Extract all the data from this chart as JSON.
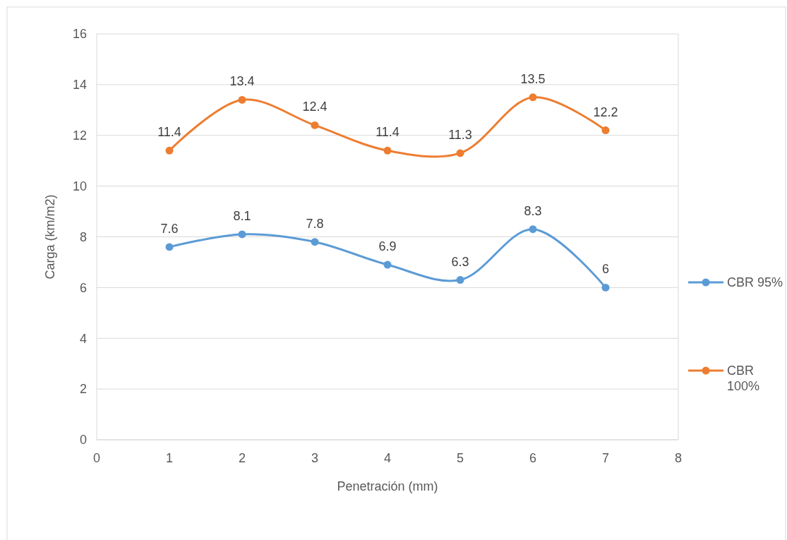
{
  "chart_data": {
    "type": "line",
    "xlabel": "Penetración (mm)",
    "ylabel": "Carga (km/m2)",
    "x": [
      1,
      2,
      3,
      4,
      5,
      6,
      7
    ],
    "series": [
      {
        "name": "CBR 95%",
        "color": "#5b9bd5",
        "values": [
          7.6,
          8.1,
          7.8,
          6.9,
          6.3,
          8.3,
          6
        ]
      },
      {
        "name": "CBR 100%",
        "color": "#ed7d31",
        "values": [
          11.4,
          13.4,
          12.4,
          11.4,
          11.3,
          13.5,
          12.2
        ]
      }
    ],
    "xlim": [
      0,
      8
    ],
    "xticks": [
      0,
      1,
      2,
      3,
      4,
      5,
      6,
      7,
      8
    ],
    "ylim": [
      0,
      16
    ],
    "yticks": [
      0,
      2,
      4,
      6,
      8,
      10,
      12,
      14,
      16
    ],
    "grid": "y",
    "legend": "right",
    "marker": "circle",
    "line_style": "solid",
    "data_labels": true
  }
}
